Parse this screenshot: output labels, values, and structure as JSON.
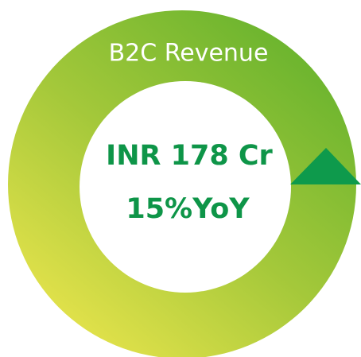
{
  "title": "B2C Revenue",
  "value": "INR 178 Cr",
  "growth": "15%YoY"
}
